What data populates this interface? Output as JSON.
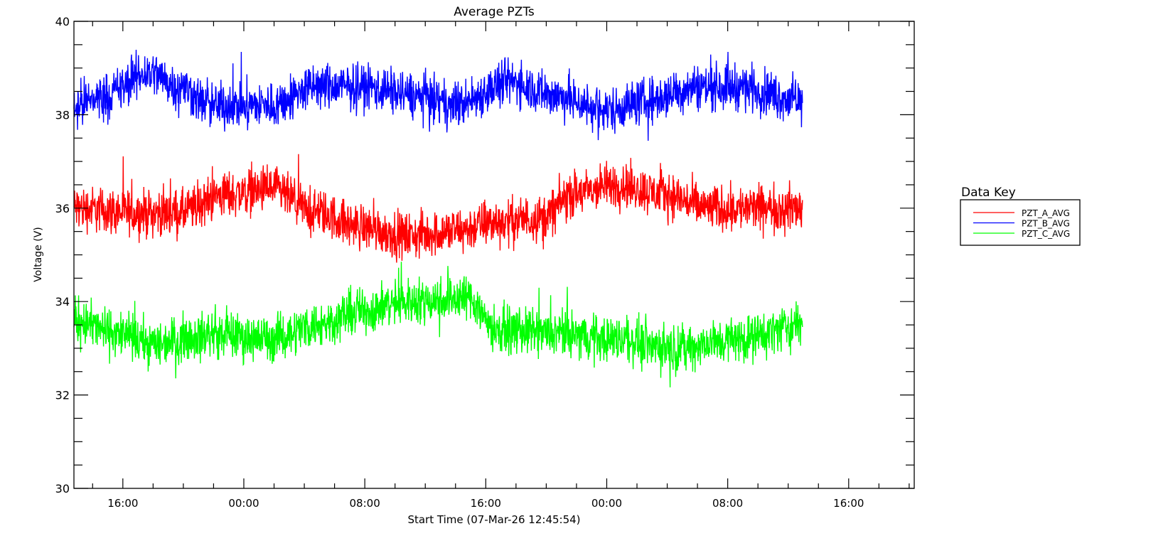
{
  "chart_data": {
    "type": "line",
    "title": "Average PZTs",
    "xlabel": "Start Time (07-Mar-26 12:45:54)",
    "ylabel": "Voltage (V)",
    "x_units": "hours since start (07-Mar-26 12:45:54)",
    "xlim": [
      0,
      55.57
    ],
    "ylim": [
      30,
      40
    ],
    "y_ticks": [
      "30",
      "32",
      "34",
      "36",
      "38",
      "40"
    ],
    "y_tick_values": [
      30,
      32,
      34,
      36,
      38,
      40
    ],
    "y_minor_step": 0.5,
    "x_ticks": [
      {
        "label": "16:00",
        "hour": 3.235
      },
      {
        "label": "00:00",
        "hour": 11.235
      },
      {
        "label": "08:00",
        "hour": 19.235
      },
      {
        "label": "16:00",
        "hour": 27.235
      },
      {
        "label": "00:00",
        "hour": 35.235
      },
      {
        "label": "08:00",
        "hour": 43.235
      },
      {
        "label": "16:00",
        "hour": 51.235
      }
    ],
    "x_minor_step_hours": 2,
    "data_end_hour": 48.2,
    "noise_amplitude": 0.42,
    "legend": {
      "title": "Data Key",
      "placement": "right"
    },
    "series": [
      {
        "name": "PZT_A_AVG",
        "color": "#ff0000",
        "trend_hours": [
          0,
          4,
          7,
          10,
          13,
          16,
          19,
          22,
          25,
          28,
          31,
          33,
          36,
          39,
          42,
          48.2
        ],
        "trend_values": [
          36.0,
          35.9,
          35.9,
          36.3,
          36.4,
          35.9,
          35.6,
          35.4,
          35.5,
          35.7,
          35.8,
          36.3,
          36.5,
          36.3,
          36.0,
          36.0
        ]
      },
      {
        "name": "PZT_B_AVG",
        "color": "#0000ff",
        "trend_hours": [
          0,
          2,
          5,
          7,
          9,
          13,
          16,
          19,
          23,
          25,
          29,
          32,
          35,
          38,
          41,
          44,
          48.2
        ],
        "trend_values": [
          38.2,
          38.4,
          38.9,
          38.6,
          38.2,
          38.2,
          38.6,
          38.6,
          38.4,
          38.2,
          38.7,
          38.4,
          38.1,
          38.3,
          38.6,
          38.6,
          38.3
        ]
      },
      {
        "name": "PZT_C_AVG",
        "color": "#00ff00",
        "trend_hours": [
          0,
          3,
          5,
          9,
          13,
          16,
          19,
          22,
          26,
          28,
          32,
          36,
          40,
          44,
          48.2
        ],
        "trend_values": [
          33.6,
          33.3,
          33.1,
          33.3,
          33.2,
          33.5,
          33.8,
          34.0,
          34.1,
          33.4,
          33.3,
          33.2,
          33.0,
          33.2,
          33.5
        ]
      }
    ]
  }
}
